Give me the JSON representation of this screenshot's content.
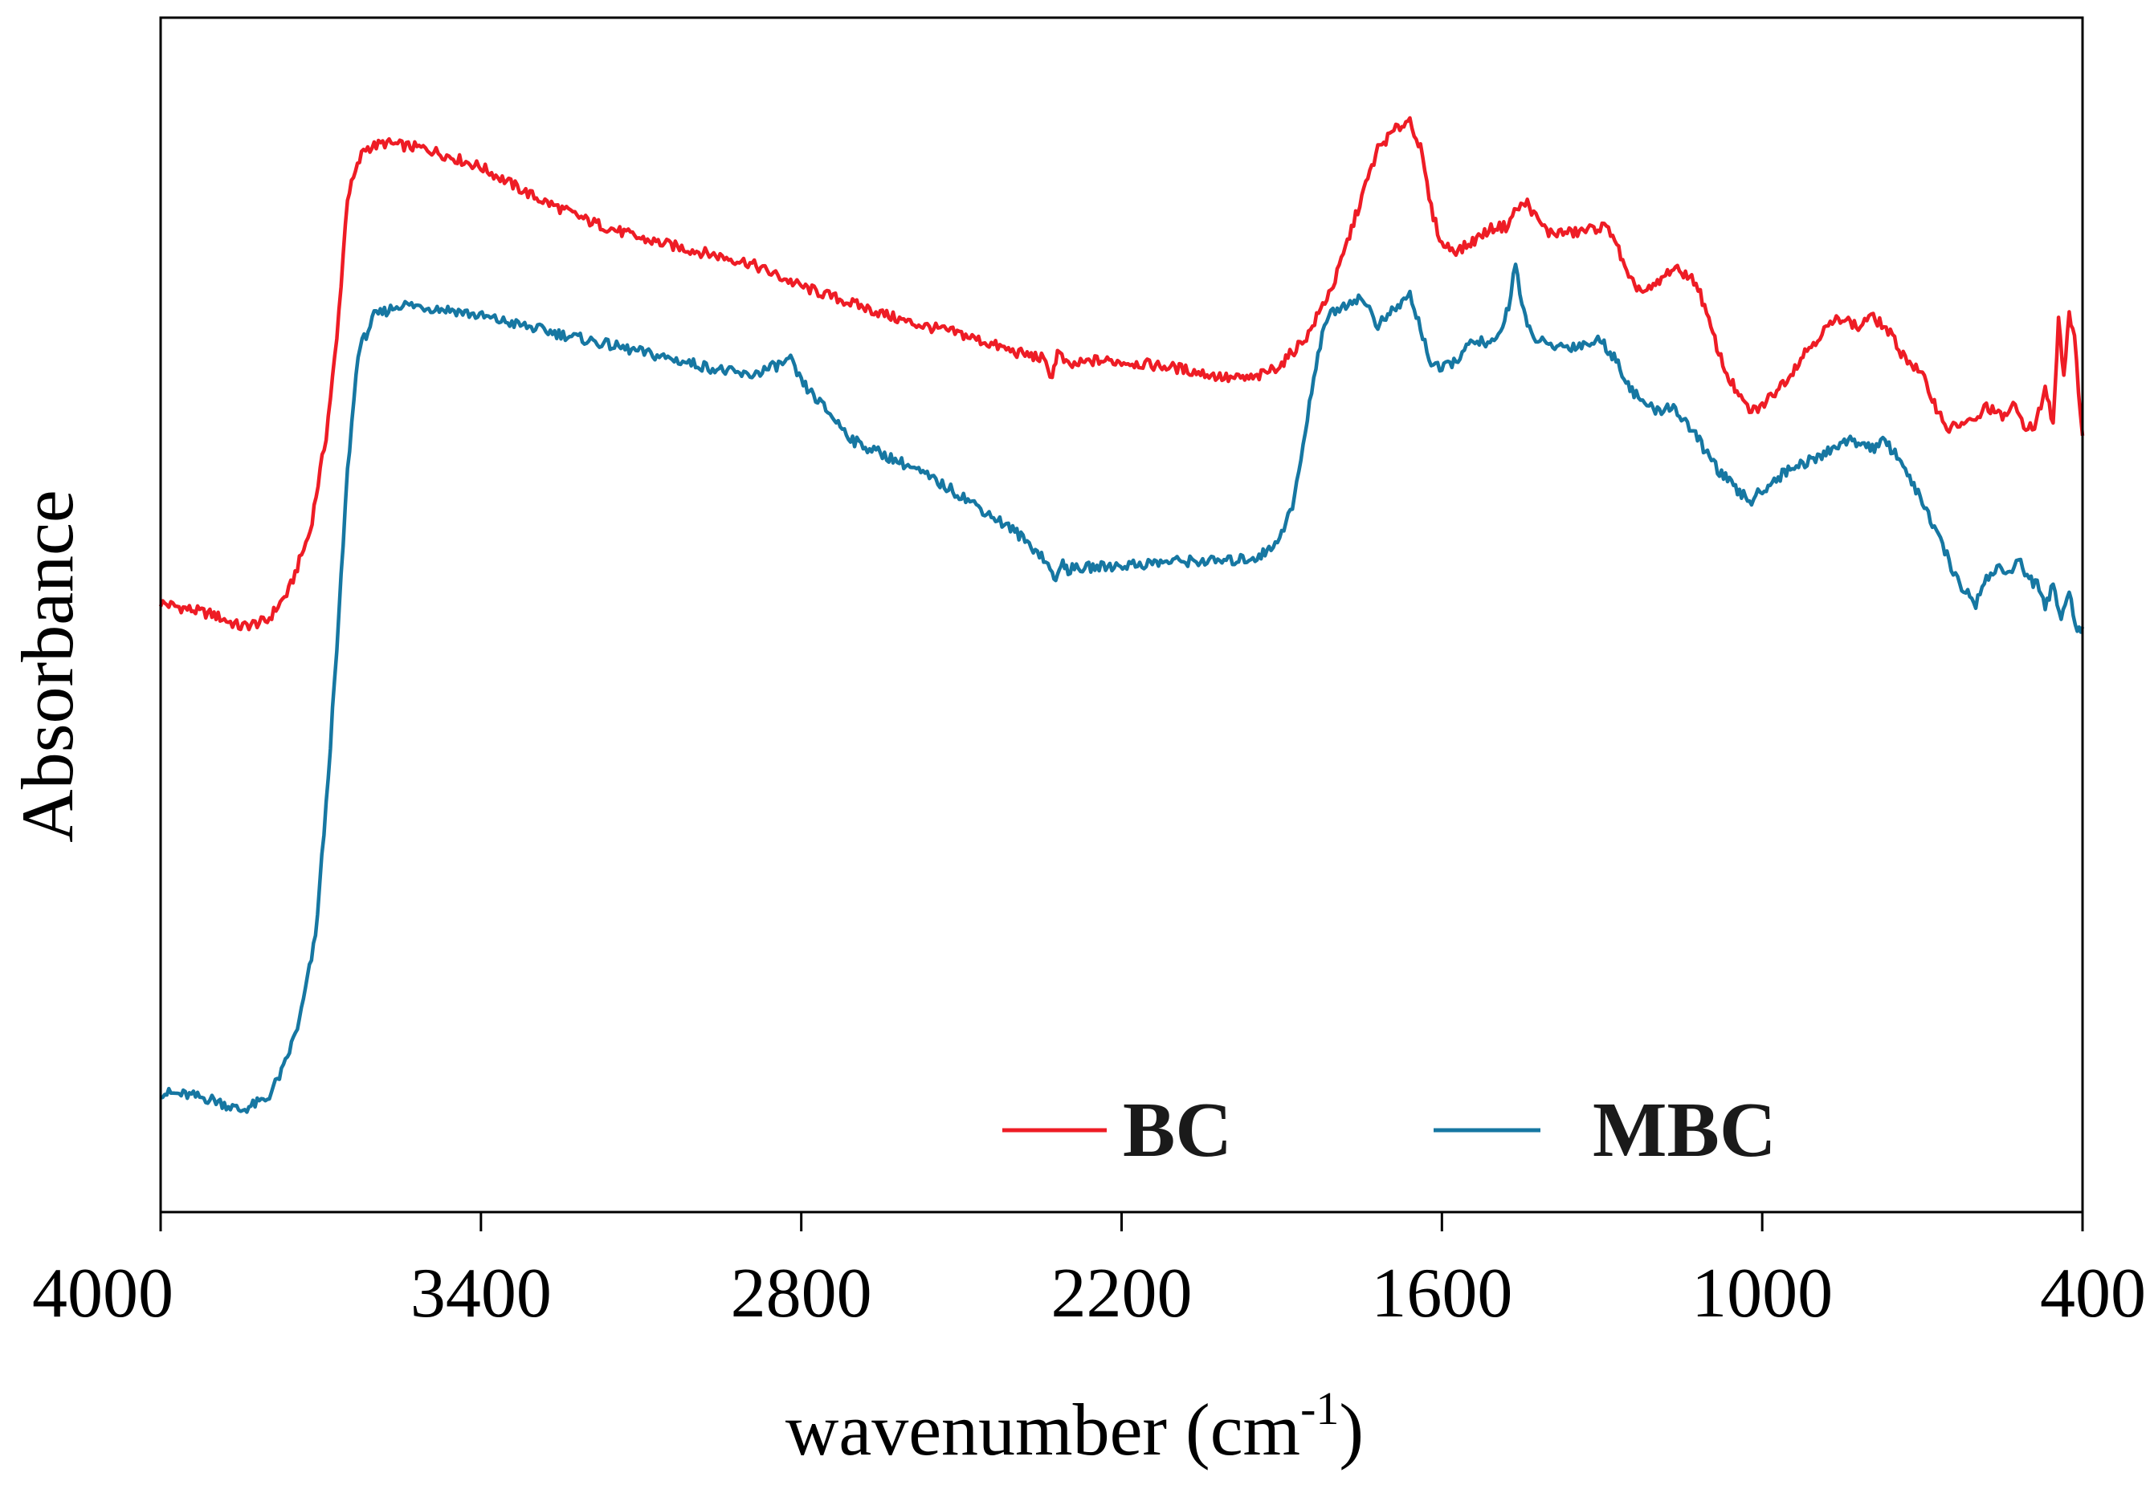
{
  "chart_data": {
    "type": "line",
    "xlabel": "wavenumber (cm",
    "xlabel_sup": "-1",
    "xlabel_close": ")",
    "ylabel": "Absorbance",
    "xlim": [
      4000,
      400
    ],
    "x_reversed": true,
    "ylim": [
      0,
      100
    ],
    "y_ticks_shown": false,
    "grid": false,
    "xticks": [
      4000,
      3400,
      2800,
      2200,
      1600,
      1000,
      400
    ],
    "xtick_labels": [
      "4000",
      "3400",
      "2800",
      "2200",
      "1600",
      "1000",
      "400"
    ],
    "legend_position": "bottom-right",
    "series": [
      {
        "name": "BC",
        "color": "#ee1c25",
        "points": [
          [
            4000,
            51
          ],
          [
            3950,
            50.5
          ],
          [
            3900,
            50
          ],
          [
            3850,
            49
          ],
          [
            3800,
            49.5
          ],
          [
            3760,
            52
          ],
          [
            3720,
            57
          ],
          [
            3690,
            65
          ],
          [
            3670,
            73
          ],
          [
            3650,
            85
          ],
          [
            3620,
            89
          ],
          [
            3580,
            89.5
          ],
          [
            3500,
            89
          ],
          [
            3400,
            87.5
          ],
          [
            3300,
            85
          ],
          [
            3200,
            83
          ],
          [
            3100,
            81.5
          ],
          [
            3000,
            80.5
          ],
          [
            2900,
            79.5
          ],
          [
            2800,
            77.5
          ],
          [
            2700,
            76
          ],
          [
            2600,
            74.5
          ],
          [
            2500,
            73.5
          ],
          [
            2400,
            72
          ],
          [
            2350,
            71.5
          ],
          [
            2330,
            70
          ],
          [
            2320,
            72
          ],
          [
            2300,
            70.8
          ],
          [
            2250,
            71.3
          ],
          [
            2200,
            71.2
          ],
          [
            2100,
            70.7
          ],
          [
            2000,
            69.8
          ],
          [
            1950,
            69.8
          ],
          [
            1900,
            71
          ],
          [
            1850,
            73.5
          ],
          [
            1800,
            78
          ],
          [
            1750,
            85
          ],
          [
            1720,
            89
          ],
          [
            1690,
            90.5
          ],
          [
            1660,
            91.5
          ],
          [
            1640,
            89
          ],
          [
            1620,
            84
          ],
          [
            1600,
            81
          ],
          [
            1570,
            80.5
          ],
          [
            1550,
            81
          ],
          [
            1520,
            82
          ],
          [
            1500,
            82.5
          ],
          [
            1480,
            82.5
          ],
          [
            1460,
            84
          ],
          [
            1440,
            84.5
          ],
          [
            1420,
            83
          ],
          [
            1400,
            82
          ],
          [
            1350,
            82
          ],
          [
            1300,
            82.5
          ],
          [
            1280,
            82
          ],
          [
            1250,
            78
          ],
          [
            1220,
            77
          ],
          [
            1200,
            77.5
          ],
          [
            1170,
            79
          ],
          [
            1140,
            78.5
          ],
          [
            1120,
            77.5
          ],
          [
            1100,
            74.5
          ],
          [
            1070,
            70.5
          ],
          [
            1040,
            68
          ],
          [
            1020,
            67
          ],
          [
            1000,
            67.5
          ],
          [
            980,
            68.5
          ],
          [
            950,
            70
          ],
          [
            920,
            72
          ],
          [
            880,
            74
          ],
          [
            850,
            75
          ],
          [
            820,
            74
          ],
          [
            800,
            75
          ],
          [
            780,
            74.5
          ],
          [
            760,
            73.5
          ],
          [
            740,
            72
          ],
          [
            700,
            70
          ],
          [
            670,
            67
          ],
          [
            650,
            65.5
          ],
          [
            630,
            66
          ],
          [
            600,
            66.2
          ],
          [
            580,
            67.5
          ],
          [
            550,
            66.5
          ],
          [
            530,
            67.5
          ],
          [
            510,
            66
          ],
          [
            490,
            65.5
          ],
          [
            470,
            69
          ],
          [
            455,
            66
          ],
          [
            445,
            75
          ],
          [
            435,
            70
          ],
          [
            425,
            75.5
          ],
          [
            415,
            73
          ],
          [
            400,
            65
          ]
        ]
      },
      {
        "name": "MBC",
        "color": "#1677a2",
        "points": [
          [
            4000,
            10
          ],
          [
            3950,
            9.8
          ],
          [
            3900,
            9.4
          ],
          [
            3850,
            8.5
          ],
          [
            3800,
            9.5
          ],
          [
            3770,
            12
          ],
          [
            3740,
            16
          ],
          [
            3710,
            23
          ],
          [
            3690,
            34
          ],
          [
            3670,
            47
          ],
          [
            3650,
            62
          ],
          [
            3630,
            72
          ],
          [
            3600,
            75
          ],
          [
            3550,
            76
          ],
          [
            3450,
            75.5
          ],
          [
            3350,
            74.5
          ],
          [
            3250,
            73.5
          ],
          [
            3150,
            72.5
          ],
          [
            3050,
            71.5
          ],
          [
            2950,
            70.5
          ],
          [
            2900,
            70
          ],
          [
            2850,
            70.8
          ],
          [
            2820,
            71.3
          ],
          [
            2800,
            69.5
          ],
          [
            2750,
            67
          ],
          [
            2700,
            64.5
          ],
          [
            2600,
            62.5
          ],
          [
            2500,
            60
          ],
          [
            2400,
            57
          ],
          [
            2350,
            55
          ],
          [
            2330,
            53.5
          ],
          [
            2320,
            53
          ],
          [
            2310,
            54.5
          ],
          [
            2300,
            53.8
          ],
          [
            2250,
            54
          ],
          [
            2150,
            54.3
          ],
          [
            2100,
            54.5
          ],
          [
            2000,
            54.5
          ],
          [
            1950,
            54.8
          ],
          [
            1920,
            55.5
          ],
          [
            1900,
            57
          ],
          [
            1880,
            59
          ],
          [
            1860,
            64
          ],
          [
            1840,
            70
          ],
          [
            1820,
            74.5
          ],
          [
            1800,
            75.5
          ],
          [
            1760,
            76.5
          ],
          [
            1740,
            76
          ],
          [
            1720,
            74.2
          ],
          [
            1690,
            75.5
          ],
          [
            1660,
            76.8
          ],
          [
            1640,
            74
          ],
          [
            1620,
            71
          ],
          [
            1600,
            70.5
          ],
          [
            1570,
            71.5
          ],
          [
            1550,
            72.5
          ],
          [
            1530,
            73
          ],
          [
            1510,
            72.5
          ],
          [
            1490,
            73.5
          ],
          [
            1475,
            76
          ],
          [
            1462,
            79.5
          ],
          [
            1450,
            76
          ],
          [
            1440,
            74
          ],
          [
            1420,
            73
          ],
          [
            1400,
            72.5
          ],
          [
            1350,
            72.5
          ],
          [
            1300,
            73
          ],
          [
            1270,
            71
          ],
          [
            1240,
            68.5
          ],
          [
            1200,
            67
          ],
          [
            1170,
            67.5
          ],
          [
            1140,
            66
          ],
          [
            1110,
            64
          ],
          [
            1080,
            62
          ],
          [
            1050,
            60.5
          ],
          [
            1020,
            59.5
          ],
          [
            1000,
            60.5
          ],
          [
            970,
            61.5
          ],
          [
            940,
            62.5
          ],
          [
            900,
            63
          ],
          [
            850,
            64.5
          ],
          [
            820,
            64.5
          ],
          [
            790,
            64
          ],
          [
            770,
            64.5
          ],
          [
            740,
            63
          ],
          [
            720,
            61
          ],
          [
            700,
            59.5
          ],
          [
            670,
            56.5
          ],
          [
            650,
            54.5
          ],
          [
            630,
            52.5
          ],
          [
            600,
            51
          ],
          [
            580,
            53
          ],
          [
            560,
            54
          ],
          [
            540,
            53.5
          ],
          [
            520,
            54.5
          ],
          [
            500,
            53
          ],
          [
            485,
            52.5
          ],
          [
            470,
            50.5
          ],
          [
            455,
            52.5
          ],
          [
            440,
            50
          ],
          [
            425,
            52
          ],
          [
            410,
            48.5
          ],
          [
            400,
            49
          ]
        ]
      }
    ]
  }
}
